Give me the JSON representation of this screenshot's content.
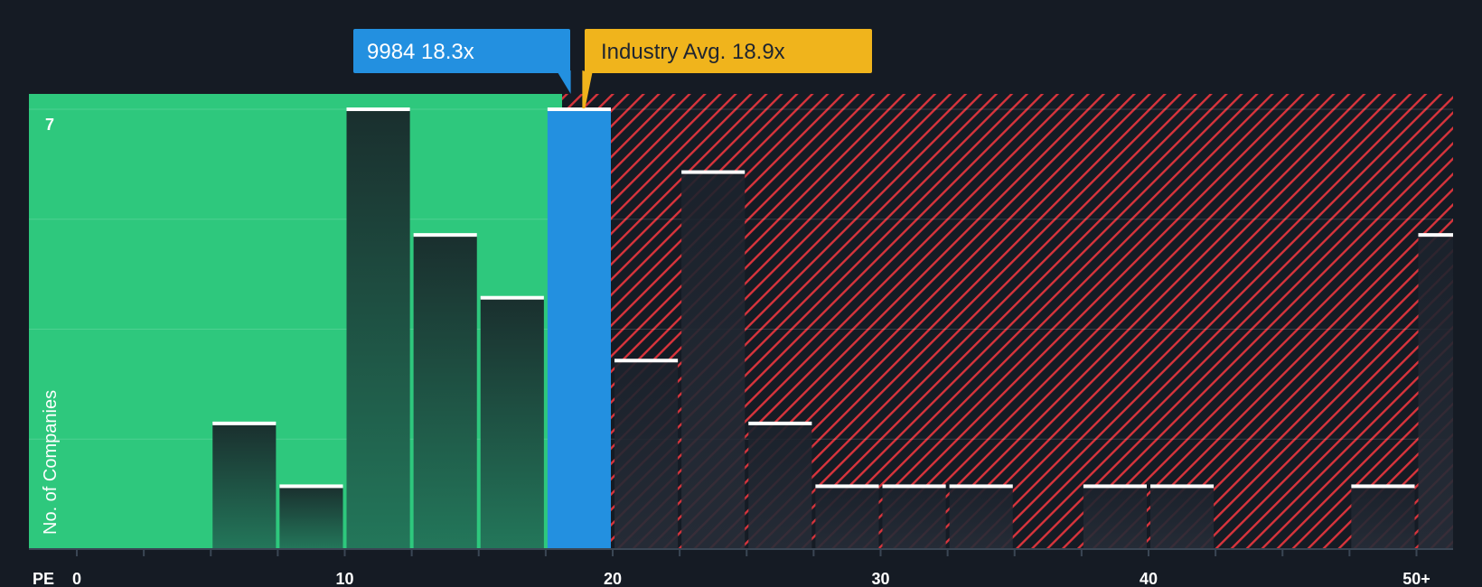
{
  "chart_data": {
    "type": "bar",
    "title": "",
    "xlabel": "PE",
    "ylabel": "No. of Companies",
    "x_ticks": [
      "0",
      "10",
      "20",
      "30",
      "40",
      "50+"
    ],
    "y_max_label": "7",
    "ylim": [
      0,
      7
    ],
    "xlim": [
      0,
      51.5
    ],
    "bin_width": 2.5,
    "bins": [
      {
        "start": 5.0,
        "value": 2
      },
      {
        "start": 7.5,
        "value": 1
      },
      {
        "start": 10.0,
        "value": 7
      },
      {
        "start": 12.5,
        "value": 5
      },
      {
        "start": 15.0,
        "value": 4
      },
      {
        "start": 17.5,
        "value": 7,
        "highlight": true
      },
      {
        "start": 20.0,
        "value": 3
      },
      {
        "start": 22.5,
        "value": 6
      },
      {
        "start": 25.0,
        "value": 2
      },
      {
        "start": 27.5,
        "value": 1
      },
      {
        "start": 30.0,
        "value": 1
      },
      {
        "start": 32.5,
        "value": 1
      },
      {
        "start": 37.5,
        "value": 1
      },
      {
        "start": 40.0,
        "value": 1
      },
      {
        "start": 47.5,
        "value": 1
      },
      {
        "start": 50.0,
        "value": 5
      }
    ],
    "company": {
      "label": "9984 18.3x",
      "value": 18.3
    },
    "industry": {
      "label": "Industry Avg. 18.9x",
      "value": 18.9
    },
    "colors": {
      "background": "#151b24",
      "undervalued": "#2ec87d",
      "overvalued_stripe": "#d8343c",
      "company": "#2390e0",
      "industry": "#f0b41c",
      "bar_dark": "#1e4d3e",
      "bar_cap": "#ffffff"
    }
  }
}
